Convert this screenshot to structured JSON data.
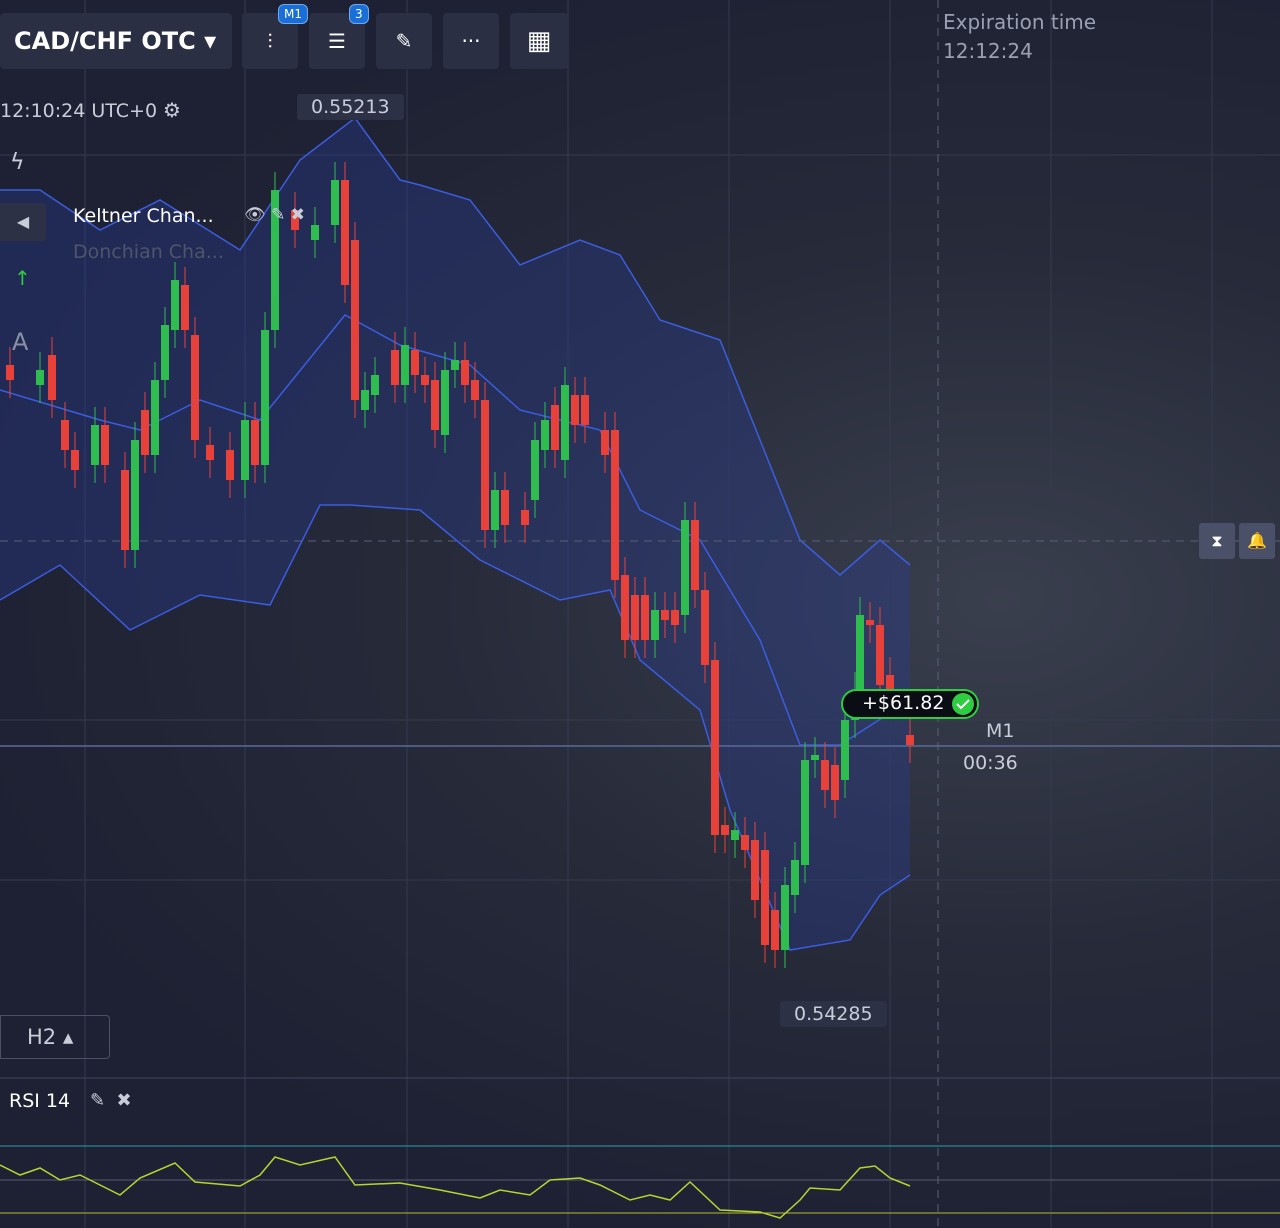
{
  "toolbar": {
    "symbol": "CAD/CHF OTC",
    "badges": [
      "M1",
      "3"
    ]
  },
  "chart": {
    "time": "12:10:24 UTC+0",
    "high_label": "0.55213",
    "low_label": "0.54285",
    "indicators": [
      "Keltner Chan...",
      "Donchian Cha..."
    ],
    "text_tool": "A",
    "timeframe": "H2"
  },
  "expiration": {
    "label": "Expiration time",
    "time": "12:12:24"
  },
  "trade": {
    "profit": "+$61.82",
    "period": "M1",
    "countdown": "00:36"
  },
  "rsi": {
    "label": "RSI 14"
  }
}
